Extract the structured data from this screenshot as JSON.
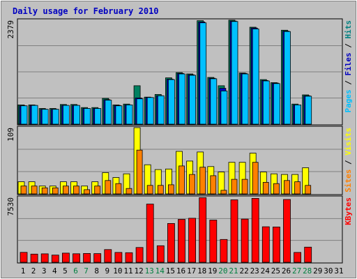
{
  "chart_data": {
    "type": "bar",
    "title": "Daily usage for February 2010",
    "x": [
      1,
      2,
      3,
      4,
      5,
      6,
      7,
      8,
      9,
      10,
      11,
      12,
      13,
      14,
      15,
      16,
      17,
      18,
      19,
      20,
      21,
      22,
      23,
      24,
      25,
      26,
      27,
      28,
      29,
      30,
      31
    ],
    "x_label_colors": [
      "#000000",
      "#000000",
      "#000000",
      "#000000",
      "#000000",
      "#008040",
      "#008040",
      "#000000",
      "#000000",
      "#000000",
      "#000000",
      "#000000",
      "#008040",
      "#008040",
      "#000000",
      "#000000",
      "#000000",
      "#000000",
      "#000000",
      "#008040",
      "#008040",
      "#000000",
      "#000000",
      "#000000",
      "#000000",
      "#000000",
      "#008040",
      "#008040",
      "#000000",
      "#000000",
      "#000000"
    ],
    "panels": [
      {
        "axis_max_label": "2379",
        "ylim": [
          0,
          2379
        ],
        "legend": [
          {
            "text": "Pages",
            "color": "#00c0ff"
          },
          {
            "text": " / ",
            "color": "#000000"
          },
          {
            "text": "Files",
            "color": "#0000c0"
          },
          {
            "text": " / ",
            "color": "#000000"
          },
          {
            "text": "Hits",
            "color": "#008080"
          }
        ],
        "series": [
          {
            "name": "Hits",
            "color": "#008060",
            "values": [
              440,
              440,
              360,
              360,
              450,
              450,
              380,
              380,
              590,
              440,
              460,
              880,
              620,
              680,
              1060,
              1180,
              1150,
              2370,
              1070,
              880,
              2380,
              1170,
              2220,
              1020,
              950,
              2150,
              460,
              670,
              0,
              0,
              0
            ]
          },
          {
            "name": "Files",
            "color": "#0000c0",
            "values": [
              420,
              430,
              340,
              340,
              430,
              430,
              360,
              360,
              560,
              430,
              440,
              600,
              610,
              650,
              1030,
              1160,
              1130,
              2340,
              1050,
              820,
              2360,
              1160,
              2200,
              1000,
              940,
              2130,
              440,
              650,
              0,
              0,
              0
            ]
          },
          {
            "name": "Pages",
            "color": "#00c0ff",
            "values": [
              420,
              430,
              340,
              340,
              430,
              430,
              360,
              360,
              550,
              420,
              440,
              580,
              610,
              650,
              1020,
              1150,
              1120,
              2320,
              1040,
              760,
              2350,
              1150,
              2180,
              990,
              930,
              2120,
              440,
              640,
              0,
              0,
              0
            ]
          }
        ]
      },
      {
        "axis_max_label": "109",
        "ylim": [
          0,
          109
        ],
        "legend": [
          {
            "text": "Sites",
            "color": "#ff8000"
          },
          {
            "text": " / ",
            "color": "#000000"
          },
          {
            "text": "Visits",
            "color": "#ffff00"
          }
        ],
        "series": [
          {
            "name": "Visits",
            "color": "#ffff00",
            "values": [
              20,
              20,
              13,
              13,
              20,
              20,
              13,
              20,
              35,
              27,
              33,
              109,
              48,
              40,
              41,
              70,
              54,
              69,
              45,
              36,
              52,
              52,
              67,
              36,
              33,
              32,
              32,
              43,
              0,
              0,
              0
            ]
          },
          {
            "name": "Sites",
            "color": "#ff8000",
            "values": [
              13,
              13,
              10,
              10,
              13,
              13,
              7,
              13,
              22,
              17,
              9,
              72,
              14,
              14,
              15,
              46,
              32,
              44,
              30,
              6,
              24,
              24,
              52,
              19,
              17,
              22,
              20,
              14,
              0,
              0,
              0
            ]
          }
        ]
      },
      {
        "axis_max_label": "7530",
        "ylim": [
          0,
          7530
        ],
        "legend": [
          {
            "text": "KBytes",
            "color": "#ff0000"
          }
        ],
        "series": [
          {
            "name": "KBytes",
            "color": "#ff0000",
            "values": [
              1150,
              950,
              980,
              830,
              1060,
              990,
              1020,
              1000,
              1470,
              1140,
              1110,
              1720,
              6750,
              1920,
              4500,
              4980,
              5110,
              7500,
              4900,
              2650,
              7250,
              5010,
              7420,
              4120,
              4100,
              7290,
              1140,
              1760,
              0,
              0,
              0
            ]
          }
        ]
      }
    ]
  }
}
